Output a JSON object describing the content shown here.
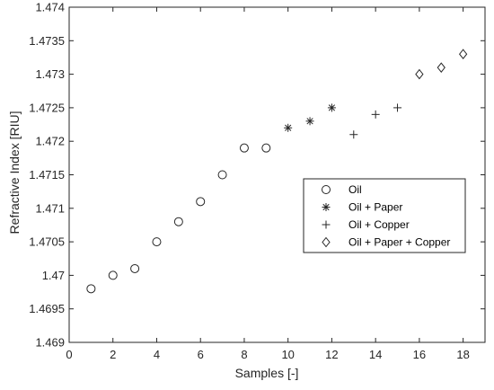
{
  "chart_data": {
    "type": "scatter",
    "title": "",
    "xlabel": "Samples [-]",
    "ylabel": "Refractive Index [RIU]",
    "xlim": [
      0,
      19
    ],
    "ylim": [
      1.469,
      1.474
    ],
    "xticks": [
      "0",
      "2",
      "4",
      "6",
      "8",
      "10",
      "12",
      "14",
      "16",
      "18"
    ],
    "yticks": [
      "1.469",
      "1.4695",
      "1.47",
      "1.4705",
      "1.471",
      "1.4715",
      "1.472",
      "1.4725",
      "1.473",
      "1.4735",
      "1.474"
    ],
    "grid": false,
    "legend_position": "center-right",
    "marker_color": "#262626",
    "series": [
      {
        "name": "Oil",
        "marker": "circle",
        "x": [
          1,
          2,
          3,
          4,
          5,
          6,
          7,
          8,
          9
        ],
        "y": [
          1.4698,
          1.47,
          1.4701,
          1.4705,
          1.4708,
          1.4711,
          1.4715,
          1.4719,
          1.4719
        ]
      },
      {
        "name": "Oil + Paper",
        "marker": "asterisk",
        "x": [
          10,
          11,
          12
        ],
        "y": [
          1.4722,
          1.4723,
          1.4725
        ]
      },
      {
        "name": "Oil + Copper",
        "marker": "plus",
        "x": [
          13,
          14,
          15
        ],
        "y": [
          1.4721,
          1.4724,
          1.4725
        ]
      },
      {
        "name": "Oil + Paper + Copper",
        "marker": "diamond",
        "x": [
          16,
          17,
          18
        ],
        "y": [
          1.473,
          1.4731,
          1.4733
        ]
      }
    ]
  }
}
